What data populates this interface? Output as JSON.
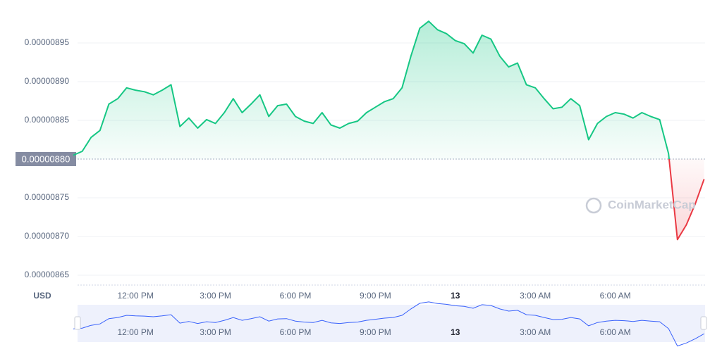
{
  "chart_data": {
    "type": "line",
    "currency": "USD",
    "watermark": "CoinMarketCap",
    "categories": [
      null,
      null,
      null,
      null,
      null,
      null,
      null,
      "12:00 PM",
      null,
      null,
      null,
      null,
      null,
      null,
      null,
      null,
      "3:00 PM",
      null,
      null,
      null,
      null,
      null,
      null,
      null,
      null,
      "6:00 PM",
      null,
      null,
      null,
      null,
      null,
      null,
      null,
      null,
      "9:00 PM",
      null,
      null,
      null,
      null,
      null,
      null,
      null,
      null,
      "13",
      null,
      null,
      null,
      null,
      null,
      null,
      null,
      null,
      "3:00 AM",
      null,
      null,
      null,
      null,
      null,
      null,
      null,
      null,
      "6:00 AM",
      null,
      null,
      null,
      null,
      null,
      null,
      null,
      null,
      null,
      null
    ],
    "values": [
      8.805e-06,
      8.81e-06,
      8.828e-06,
      8.837e-06,
      8.871e-06,
      8.878e-06,
      8.892e-06,
      8.889e-06,
      8.887e-06,
      8.883e-06,
      8.889e-06,
      8.896e-06,
      8.842e-06,
      8.853e-06,
      8.84e-06,
      8.851e-06,
      8.846e-06,
      8.86e-06,
      8.878e-06,
      8.86e-06,
      8.871e-06,
      8.883e-06,
      8.855e-06,
      8.869e-06,
      8.871e-06,
      8.855e-06,
      8.849e-06,
      8.846e-06,
      8.86e-06,
      8.844e-06,
      8.84e-06,
      8.846e-06,
      8.849e-06,
      8.86e-06,
      8.867e-06,
      8.874e-06,
      8.878e-06,
      8.892e-06,
      8.933e-06,
      8.969e-06,
      8.978e-06,
      8.967e-06,
      8.962e-06,
      8.953e-06,
      8.949e-06,
      8.937e-06,
      8.96e-06,
      8.955e-06,
      8.933e-06,
      8.919e-06,
      8.924e-06,
      8.896e-06,
      8.892e-06,
      8.878e-06,
      8.865e-06,
      8.867e-06,
      8.878e-06,
      8.869e-06,
      8.825e-06,
      8.846e-06,
      8.855e-06,
      8.86e-06,
      8.858e-06,
      8.853e-06,
      8.86e-06,
      8.855e-06,
      8.851e-06,
      8.807e-06,
      8.696e-06,
      8.715e-06,
      8.742e-06,
      8.774e-06
    ],
    "baseline": {
      "value": 8.8e-06,
      "label": "0.00000880"
    },
    "up_color": "#16c784",
    "down_color": "#ea3943",
    "navigator_color": "#3861fb",
    "ylim": [
      8.64e-06,
      9e-06
    ],
    "yticks": [
      8.65e-06,
      {
        "value": 8.7e-06,
        "label": "0.00000870"
      },
      8.75e-06,
      {
        "value": 8.8e-06,
        "label": "0.00000880"
      },
      8.85e-06,
      {
        "value": 8.9e-06,
        "label": "0.00000890"
      },
      8.95e-06
    ],
    "grid": true
  }
}
